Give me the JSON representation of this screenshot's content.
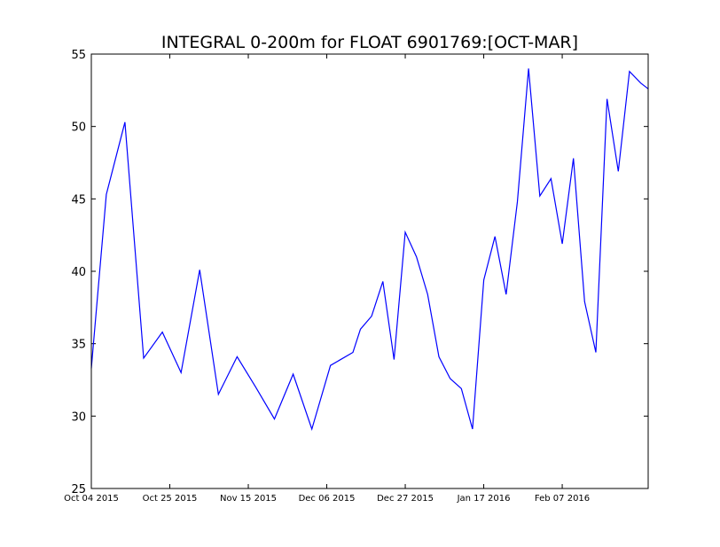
{
  "chart_data": {
    "type": "line",
    "title": "INTEGRAL 0-200m for FLOAT 6901769:[OCT-MAR]",
    "xlabel": "",
    "ylabel": "",
    "xlim": [
      "2015-10-04",
      "2016-03-01"
    ],
    "ylim": [
      25,
      55
    ],
    "y_ticks": [
      25,
      30,
      35,
      40,
      45,
      50,
      55
    ],
    "x_ticks": [
      {
        "date": "2015-10-04",
        "label": "Oct 04 2015"
      },
      {
        "date": "2015-10-25",
        "label": "Oct 25 2015"
      },
      {
        "date": "2015-11-15",
        "label": "Nov 15 2015"
      },
      {
        "date": "2015-12-06",
        "label": "Dec 06 2015"
      },
      {
        "date": "2015-12-27",
        "label": "Dec 27 2015"
      },
      {
        "date": "2016-01-17",
        "label": "Jan 17 2016"
      },
      {
        "date": "2016-02-07",
        "label": "Feb 07 2016"
      }
    ],
    "grid": false,
    "line_color": "#0000ff",
    "series": [
      {
        "x": [
          "2015-10-04",
          "2015-10-08",
          "2015-10-13",
          "2015-10-18",
          "2015-10-23",
          "2015-10-28",
          "2015-11-02",
          "2015-11-07",
          "2015-11-12",
          "2015-11-17",
          "2015-11-22",
          "2015-11-27",
          "2015-12-02",
          "2015-12-07",
          "2015-12-13",
          "2015-12-15",
          "2015-12-18",
          "2015-12-21",
          "2015-12-24",
          "2015-12-27",
          "2015-12-30",
          "2016-01-02",
          "2016-01-05",
          "2016-01-08",
          "2016-01-11",
          "2016-01-14",
          "2016-01-17",
          "2016-01-20",
          "2016-01-23",
          "2016-01-26",
          "2016-01-29",
          "2016-02-01",
          "2016-02-04",
          "2016-02-07",
          "2016-02-10",
          "2016-02-13",
          "2016-02-16",
          "2016-02-19",
          "2016-02-22",
          "2016-02-25",
          "2016-02-28",
          "2016-03-01"
        ],
        "y": [
          33.3,
          45.3,
          50.3,
          34.0,
          35.8,
          33.0,
          40.1,
          31.5,
          34.1,
          32.0,
          29.8,
          32.9,
          29.1,
          33.5,
          34.4,
          36.0,
          36.9,
          39.3,
          33.9,
          42.7,
          41.0,
          38.4,
          34.1,
          32.6,
          31.9,
          29.1,
          39.4,
          42.4,
          38.4,
          44.8,
          54.0,
          45.2,
          46.4,
          41.9,
          47.8,
          37.9,
          34.4,
          51.9,
          46.9,
          53.8,
          53.0,
          52.6
        ]
      }
    ]
  }
}
